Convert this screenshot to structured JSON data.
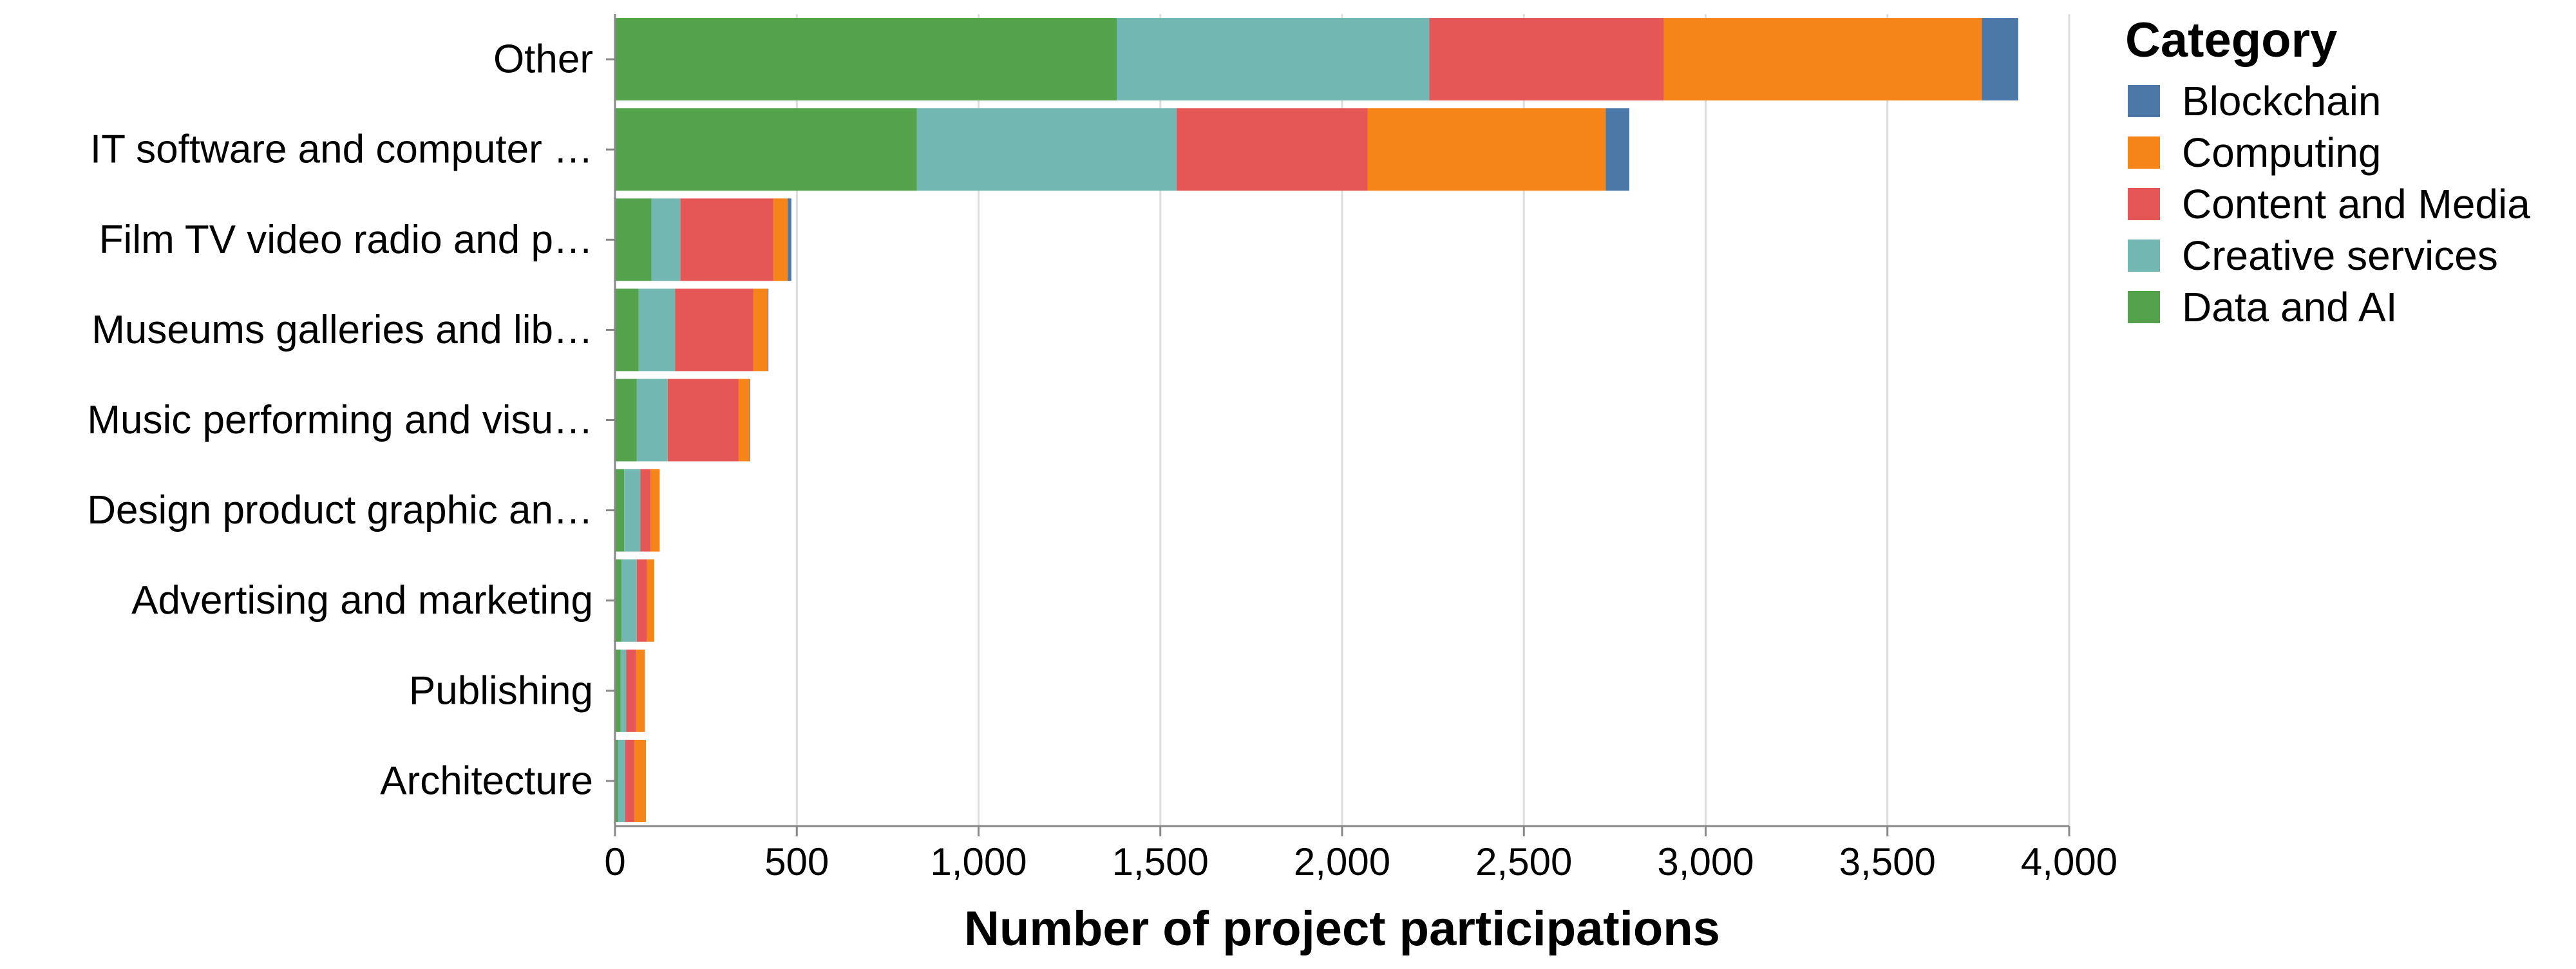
{
  "chart_data": {
    "type": "bar",
    "orientation": "horizontal",
    "stacked": true,
    "categories": [
      "Other",
      "IT software and computer …",
      "Film TV video radio and p…",
      "Museums galleries and lib…",
      "Music performing and visu…",
      "Design product graphic an…",
      "Advertising and marketing",
      "Publishing",
      "Architecture"
    ],
    "series": [
      {
        "name": "Data and AI",
        "color": "#54a24b",
        "values": [
          1380,
          830,
          100,
          65,
          60,
          25,
          18,
          15,
          8
        ]
      },
      {
        "name": "Creative services",
        "color": "#72b7b2",
        "values": [
          860,
          715,
          80,
          100,
          85,
          45,
          42,
          16,
          20
        ]
      },
      {
        "name": "Content and Media",
        "color": "#e45756",
        "values": [
          645,
          525,
          255,
          215,
          195,
          28,
          28,
          27,
          25
        ]
      },
      {
        "name": "Computing",
        "color": "#f58518",
        "values": [
          875,
          655,
          40,
          40,
          30,
          25,
          20,
          24,
          32
        ]
      },
      {
        "name": "Blockchain",
        "color": "#4c78a8",
        "values": [
          100,
          65,
          10,
          2,
          2,
          0,
          0,
          0,
          0
        ]
      }
    ],
    "xlabel": "Number of project participations",
    "ylabel": "",
    "xlim": [
      0,
      4000
    ],
    "xticks": [
      0,
      500,
      1000,
      1500,
      2000,
      2500,
      3000,
      3500,
      4000
    ],
    "xtick_labels": [
      "0",
      "500",
      "1,000",
      "1,500",
      "2,000",
      "2,500",
      "3,000",
      "3,500",
      "4,000"
    ],
    "grid": true,
    "legend": {
      "title": "Category",
      "position": "right",
      "items": [
        {
          "label": "Blockchain",
          "color": "#4c78a8"
        },
        {
          "label": "Computing",
          "color": "#f58518"
        },
        {
          "label": "Content and Media",
          "color": "#e45756"
        },
        {
          "label": "Creative services",
          "color": "#72b7b2"
        },
        {
          "label": "Data and AI",
          "color": "#54a24b"
        }
      ]
    }
  }
}
